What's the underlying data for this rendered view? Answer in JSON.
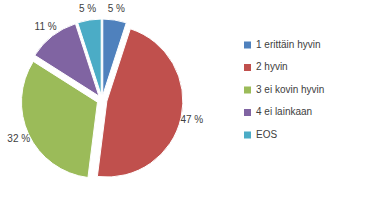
{
  "chart_data": {
    "type": "pie",
    "categories": [
      "1 erittäin hyvin",
      "2 hyvin",
      "3 ei kovin hyvin",
      "4 ei lainkaan",
      "EOS"
    ],
    "values": [
      5,
      47,
      32,
      11,
      5
    ],
    "value_labels": [
      "5 %",
      "47 %",
      "32 %",
      "11 %",
      "5 %"
    ],
    "colors": [
      "#4f81bd",
      "#c0504d",
      "#9bbb59",
      "#8064a2",
      "#4bacc6"
    ],
    "data_labels": true,
    "legend": "right"
  }
}
